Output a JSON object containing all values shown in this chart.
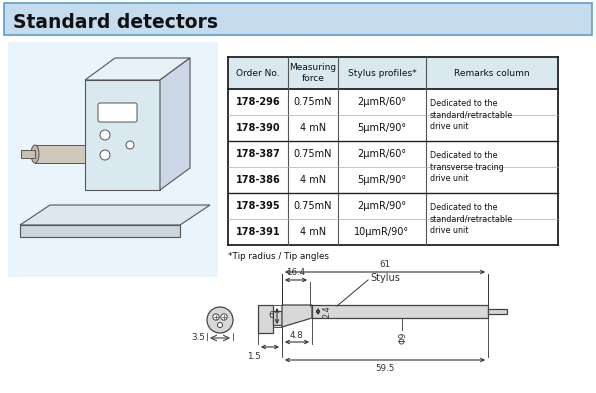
{
  "title": "Standard detectors",
  "title_bg": "#c5dcee",
  "title_border": "#5a9fc8",
  "bg_color": "#ffffff",
  "table_header_bg": "#dae8f0",
  "table_rows": [
    {
      "order": "178-296",
      "force": "0.75mN",
      "stylus": "2μmR/60°"
    },
    {
      "order": "178-390",
      "force": "4 mN",
      "stylus": "5μmR/90°"
    },
    {
      "order": "178-387",
      "force": "0.75mN",
      "stylus": "2μmR/60°"
    },
    {
      "order": "178-386",
      "force": "4 mN",
      "stylus": "5μmR/90°"
    },
    {
      "order": "178-395",
      "force": "0.75mN",
      "stylus": "2μmR/90°"
    },
    {
      "order": "178-391",
      "force": "4 mN",
      "stylus": "10μmR/90°"
    }
  ],
  "remarks_groups": [
    "Dedicated to the\nstandard/retractable\ndrive unit",
    "Dedicated to the\ntransverse tracing\ndrive unit",
    "Dedicated to the\nstandard/retractable\ndrive unit"
  ],
  "footnote": "*Tip radius / Tip angles",
  "dim_61": "61",
  "dim_164": "16.4",
  "dim_stylus": "Stylus",
  "dim_6": "6",
  "dim_48": "4.8",
  "dim_24": "2.4",
  "dim_phi9": "Φ9",
  "dim_595": "59.5",
  "dim_15": "1.5",
  "dim_35": "3.5"
}
